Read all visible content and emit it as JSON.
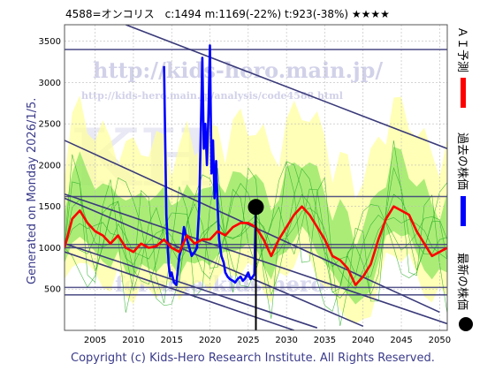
{
  "header": {
    "title": "4588=オンコリス　c:1494  m:1169(-22%)  t:923(-38%)  ★★★★"
  },
  "side_label": "Generated on Monday 2026/1/5.",
  "footer": {
    "copyright": "Copyright (c) Kids-Hero Research Institute. All Rights Reserved."
  },
  "watermark": {
    "url1": "http://kids-hero.main.jp/",
    "url2": "http://kids-hero.main.jp/analysis/code4588.html",
    "url3": "fortune-kids-hero"
  },
  "legend": {
    "items": [
      {
        "label": "ＡＩ予測",
        "color": "#ff0000"
      },
      {
        "label": "過去の株価",
        "color": "#0000ff"
      },
      {
        "label": "最新の株価",
        "color": "#000000"
      }
    ]
  },
  "colors": {
    "prediction": "#ff0000",
    "history": "#0000ff",
    "latest": "#000000",
    "trend": "#3a3a7a",
    "band_green": "#66dd44",
    "band_yellow": "#ffff99"
  },
  "chart_data": {
    "type": "line",
    "xlim": [
      2001,
      2051
    ],
    "ylim": [
      0,
      3700
    ],
    "xticks": [
      2005,
      2010,
      2015,
      2020,
      2025,
      2030,
      2035,
      2040,
      2045,
      2050
    ],
    "yticks": [
      500,
      1000,
      1500,
      2000,
      2500,
      3000,
      3500
    ],
    "grid": true,
    "horizontal_levels": [
      430,
      520,
      1000,
      1040,
      1620,
      3400
    ],
    "trend_lines": [
      {
        "x": [
          2001,
          2051
        ],
        "y": [
          1650,
          80
        ]
      },
      {
        "x": [
          2001,
          2040
        ],
        "y": [
          1600,
          50
        ]
      },
      {
        "x": [
          2001,
          2034
        ],
        "y": [
          1050,
          30
        ]
      },
      {
        "x": [
          2001,
          2031
        ],
        "y": [
          950,
          0
        ]
      },
      {
        "x": [
          2001,
          2050
        ],
        "y": [
          2300,
          220
        ]
      },
      {
        "x": [
          2009,
          2051
        ],
        "y": [
          3700,
          2200
        ]
      }
    ],
    "series": [
      {
        "name": "過去の株価",
        "x": [
          2014,
          2014.3,
          2014.6,
          2014.8,
          2015,
          2015.3,
          2015.6,
          2016,
          2016.3,
          2016.6,
          2017,
          2017.3,
          2017.6,
          2018,
          2018.3,
          2018.6,
          2019,
          2019.2,
          2019.4,
          2019.6,
          2019.8,
          2020,
          2020.2,
          2020.4,
          2020.6,
          2020.8,
          2021,
          2021.2,
          2021.5,
          2021.8,
          2022,
          2022.3,
          2022.6,
          2023,
          2023.3,
          2023.6,
          2024,
          2024.3,
          2024.6,
          2025,
          2025.3,
          2025.6,
          2025.8,
          2026
        ],
        "y": [
          3200,
          1400,
          800,
          650,
          700,
          580,
          550,
          900,
          1000,
          1250,
          1100,
          1000,
          900,
          950,
          1000,
          1500,
          3300,
          2200,
          2500,
          2000,
          2600,
          3450,
          1900,
          2300,
          1600,
          2050,
          1500,
          1100,
          900,
          820,
          700,
          650,
          620,
          600,
          580,
          620,
          650,
          600,
          630,
          700,
          620,
          650,
          680,
          1494
        ]
      },
      {
        "name": "ＡＩ予測",
        "x": [
          2001,
          2002,
          2003,
          2004,
          2005,
          2006,
          2007,
          2008,
          2009,
          2010,
          2011,
          2012,
          2013,
          2014,
          2015,
          2016,
          2017,
          2018,
          2019,
          2020,
          2021,
          2022,
          2023,
          2024,
          2025,
          2026,
          2027,
          2028,
          2029,
          2030,
          2031,
          2032,
          2033,
          2034,
          2035,
          2036,
          2037,
          2038,
          2039,
          2040,
          2041,
          2042,
          2043,
          2044,
          2045,
          2046,
          2047,
          2048,
          2049,
          2050,
          2051
        ],
        "y": [
          1000,
          1350,
          1450,
          1300,
          1200,
          1150,
          1050,
          1150,
          1000,
          950,
          1050,
          1000,
          1020,
          1100,
          1000,
          950,
          1150,
          1050,
          1100,
          1100,
          1200,
          1150,
          1250,
          1300,
          1300,
          1250,
          1100,
          900,
          1100,
          1250,
          1400,
          1500,
          1400,
          1250,
          1100,
          900,
          850,
          750,
          550,
          650,
          800,
          1100,
          1350,
          1500,
          1450,
          1400,
          1200,
          1050,
          900,
          950,
          1000
        ]
      },
      {
        "name": "最新の株価",
        "x": [
          2026
        ],
        "y": [
          1494
        ]
      }
    ]
  }
}
